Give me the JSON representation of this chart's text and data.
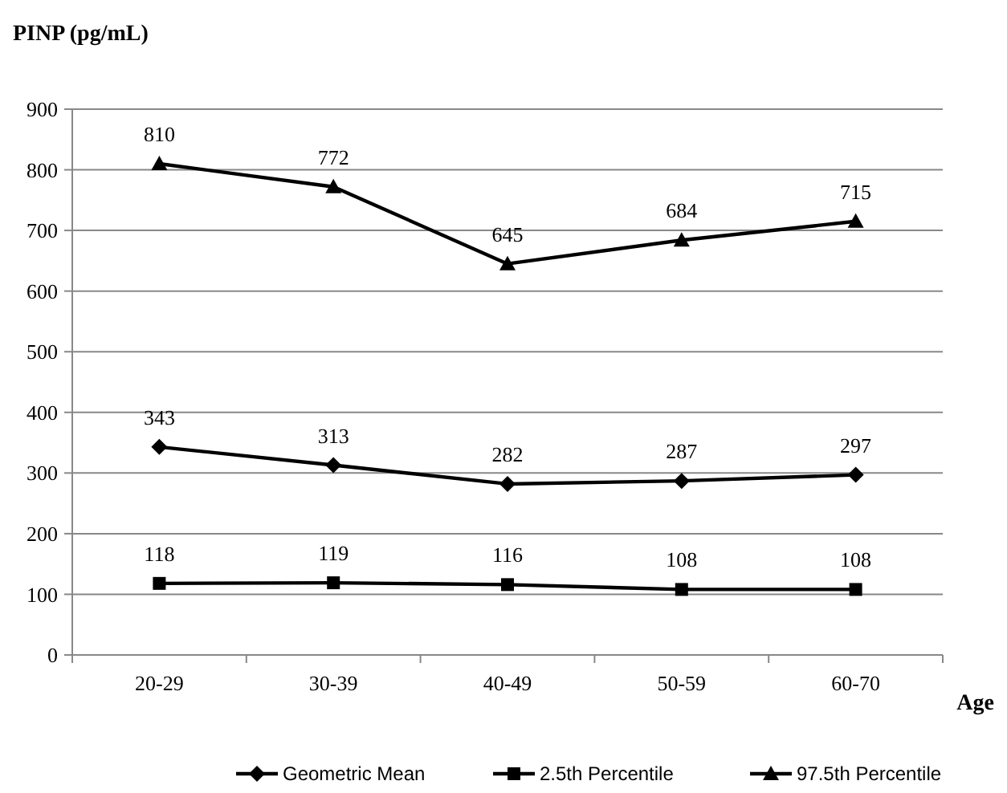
{
  "chart_data": {
    "type": "line",
    "title": "PINP (pg/mL)",
    "xlabel": "Age",
    "categories": [
      "20-29",
      "30-39",
      "40-49",
      "50-59",
      "60-70"
    ],
    "series": [
      {
        "name": "Geometric Mean",
        "color": "#000000",
        "marker": "diamond",
        "values": [
          343,
          313,
          282,
          287,
          297
        ]
      },
      {
        "name": "2.5th Percentile",
        "color": "#000000",
        "marker": "square",
        "values": [
          118,
          119,
          116,
          108,
          108
        ]
      },
      {
        "name": "97.5th Percentile",
        "color": "#000000",
        "marker": "triangle",
        "values": [
          810,
          772,
          645,
          684,
          715
        ]
      }
    ],
    "ylim": [
      0,
      900
    ],
    "yticks": [
      0,
      100,
      200,
      300,
      400,
      500,
      600,
      700,
      800,
      900
    ],
    "grid": "y",
    "legend": "bottom",
    "data_labels": true,
    "line_style": "solid"
  }
}
